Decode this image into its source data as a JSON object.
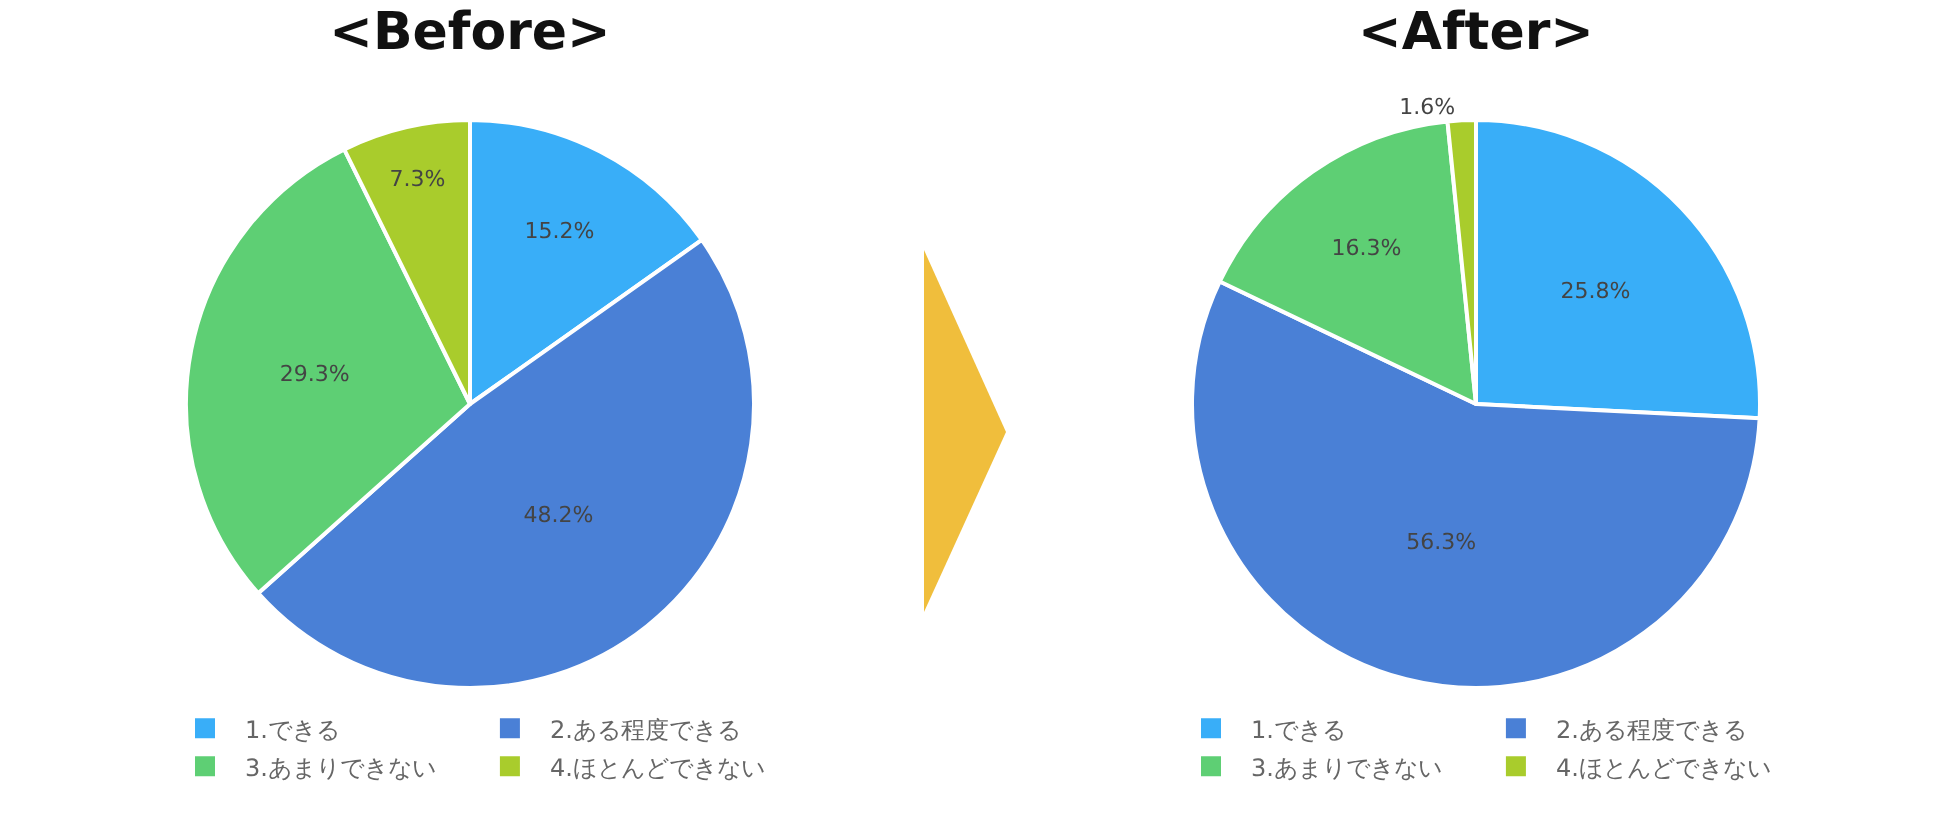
{
  "chart_data": [
    {
      "type": "pie",
      "title": "<Before>",
      "categories": [
        "1.できる",
        "2.ある程度できる",
        "3.あまりできない",
        "4.ほとんどできない"
      ],
      "values": [
        15.2,
        48.2,
        29.3,
        7.3
      ],
      "value_labels": [
        "15.2%",
        "48.2%",
        "29.3%",
        "7.3%"
      ],
      "colors": [
        "#39aef8",
        "#4a80d6",
        "#5ecf74",
        "#a9cc2c"
      ],
      "legend": "bottom"
    },
    {
      "type": "pie",
      "title": "<After>",
      "categories": [
        "1.できる",
        "2.ある程度できる",
        "3.あまりできない",
        "4.ほとんどできない"
      ],
      "values": [
        25.8,
        56.3,
        16.3,
        1.6
      ],
      "value_labels": [
        "25.8%",
        "56.3%",
        "16.3%",
        "1.6%"
      ],
      "colors": [
        "#39aef8",
        "#4a80d6",
        "#5ecf74",
        "#a9cc2c"
      ],
      "legend": "bottom"
    }
  ]
}
